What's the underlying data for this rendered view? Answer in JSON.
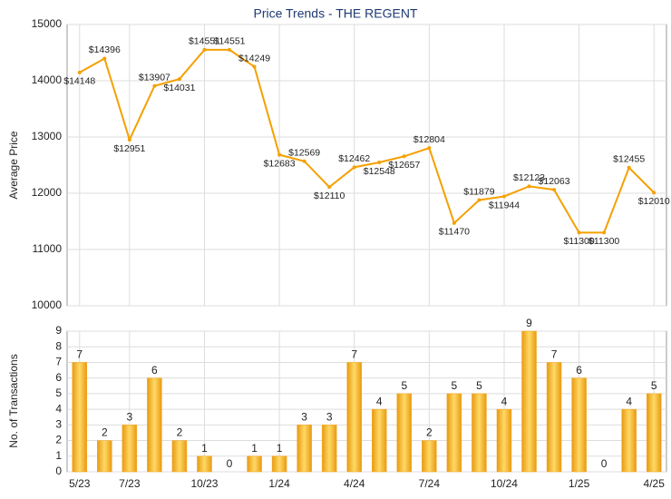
{
  "chart_data": [
    {
      "type": "line",
      "title": "Price Trends - THE REGENT",
      "y_label": "Average Price",
      "categories": [
        "5/23",
        null,
        "7/23",
        null,
        null,
        "10/23",
        null,
        null,
        "1/24",
        null,
        null,
        "4/24",
        null,
        null,
        "7/24",
        null,
        null,
        "10/24",
        null,
        null,
        "1/25",
        null,
        null,
        "4/25"
      ],
      "series": [
        {
          "name": "Average Price",
          "color": "#f5a000",
          "values": [
            14148,
            14396,
            12951,
            13907,
            14031,
            14551,
            14551,
            14249,
            12683,
            12569,
            12110,
            12462,
            12548,
            12657,
            12804,
            11470,
            11879,
            11944,
            12123,
            12063,
            11300,
            11300,
            12455,
            12010
          ],
          "value_labels": [
            "$14148",
            "$14396",
            "$12951",
            "$13907",
            "$14031",
            "$14551",
            "$14551",
            "$14249",
            "$12683",
            "$12569",
            "$12110",
            "$12462",
            "$12548",
            "$12657",
            "$12804",
            "$11470",
            "$11879",
            "$11944",
            "$12123",
            "$12063",
            "$11300",
            "$11300",
            "$12455",
            "$12010"
          ]
        }
      ],
      "ylim": [
        10000,
        15000
      ],
      "yticks": [
        10000,
        11000,
        12000,
        13000,
        14000,
        15000
      ],
      "grid": true
    },
    {
      "type": "bar",
      "y_label": "No. of Transactions",
      "categories": [
        "5/23",
        null,
        "7/23",
        null,
        null,
        "10/23",
        null,
        null,
        "1/24",
        null,
        null,
        "4/24",
        null,
        null,
        "7/24",
        null,
        null,
        "10/24",
        null,
        null,
        "1/25",
        null,
        null,
        "4/25"
      ],
      "series": [
        {
          "name": "No. of Transactions",
          "color": "#f5a623",
          "values": [
            7,
            2,
            3,
            6,
            2,
            1,
            0,
            1,
            1,
            3,
            3,
            7,
            4,
            5,
            2,
            5,
            5,
            4,
            9,
            7,
            6,
            0,
            4,
            5
          ]
        }
      ],
      "ylim": [
        0,
        9
      ],
      "yticks": [
        0,
        1,
        2,
        3,
        4,
        5,
        6,
        7,
        8,
        9
      ],
      "grid": true
    }
  ]
}
